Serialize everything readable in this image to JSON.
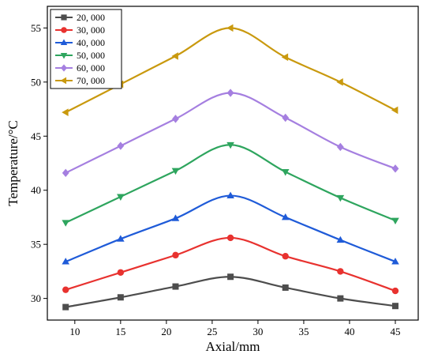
{
  "chart_data": {
    "type": "line",
    "title": "",
    "xlabel": "Axial/mm",
    "ylabel": "Temperature/°C",
    "xlim": [
      7,
      47.5
    ],
    "ylim": [
      28,
      57
    ],
    "xticks": [
      10,
      15,
      20,
      25,
      30,
      35,
      40,
      45
    ],
    "yticks": [
      30,
      35,
      40,
      45,
      50,
      55
    ],
    "grid": false,
    "legend_position": "top-left",
    "x": [
      9,
      15,
      21,
      27,
      33,
      39,
      45
    ],
    "series": [
      {
        "name": "20, 000",
        "color": "#4d4d4d",
        "marker": "square",
        "values": [
          29.2,
          30.1,
          31.1,
          32.0,
          31.0,
          30.0,
          29.3
        ]
      },
      {
        "name": "30, 000",
        "color": "#e8322f",
        "marker": "circle",
        "values": [
          30.8,
          32.4,
          34.0,
          35.6,
          33.9,
          32.5,
          30.7
        ]
      },
      {
        "name": "40, 000",
        "color": "#1f5bd8",
        "marker": "triangle-up",
        "values": [
          33.4,
          35.5,
          37.4,
          39.5,
          37.5,
          35.4,
          33.4
        ]
      },
      {
        "name": "50, 000",
        "color": "#2ea55e",
        "marker": "triangle-down",
        "values": [
          37.0,
          39.4,
          41.8,
          44.2,
          41.7,
          39.3,
          37.2
        ]
      },
      {
        "name": "60, 000",
        "color": "#a57fe0",
        "marker": "diamond",
        "values": [
          41.6,
          44.1,
          46.6,
          49.0,
          46.7,
          44.0,
          42.0
        ]
      },
      {
        "name": "70, 000",
        "color": "#c9990e",
        "marker": "triangle-left",
        "values": [
          47.2,
          49.8,
          52.4,
          55.0,
          52.3,
          50.0,
          47.4
        ]
      }
    ]
  }
}
